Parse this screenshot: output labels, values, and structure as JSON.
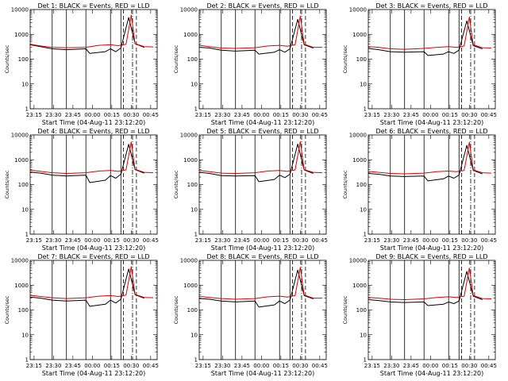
{
  "figure": {
    "x_tick_labels": [
      "23:15",
      "23:30",
      "23:45",
      "00:00",
      "00:15",
      "00:30",
      "00:45"
    ],
    "y_tick_labels": [
      "1",
      "10",
      "100",
      "1000",
      "10000"
    ],
    "ylabel": "Counts/sec",
    "xlabel": "Start Time (04-Aug-11 23:12:20)"
  },
  "chart_data": [
    {
      "type": "line",
      "title": "Det 1: BLACK = Events, RED = LLD",
      "xlabel": "Start Time (04-Aug-11 23:12:20)",
      "ylabel": "Counts/sec",
      "y_scale": "log",
      "ylim": [
        1,
        10000
      ],
      "x_ticks": [
        "23:15",
        "23:30",
        "23:45",
        "00:00",
        "00:15",
        "00:30",
        "00:45"
      ],
      "series": [
        {
          "name": "Events",
          "color": "#000000",
          "x": [
            "23:12",
            "23:20",
            "23:29",
            "23:40",
            "23:55",
            "23:58",
            "00:10",
            "00:14",
            "00:18",
            "00:22",
            "00:28",
            "00:33",
            "00:40"
          ],
          "y": [
            380,
            320,
            260,
            240,
            260,
            170,
            200,
            260,
            200,
            280,
            4800,
            420,
            300
          ]
        },
        {
          "name": "LLD",
          "color": "#dd0000",
          "x": [
            "23:12",
            "23:20",
            "23:29",
            "23:40",
            "23:55",
            "00:05",
            "00:14",
            "00:20",
            "00:26",
            "00:30",
            "00:33",
            "00:40",
            "00:47"
          ],
          "y": [
            400,
            340,
            300,
            290,
            300,
            360,
            380,
            350,
            400,
            6000,
            420,
            320,
            310
          ]
        }
      ]
    },
    {
      "type": "line",
      "title": "Det 2: BLACK = Events, RED = LLD",
      "xlabel": "Start Time (04-Aug-11 23:12:20)",
      "ylabel": "Counts/sec",
      "y_scale": "log",
      "ylim": [
        1,
        10000
      ],
      "x_ticks": [
        "23:15",
        "23:30",
        "23:45",
        "00:00",
        "00:15",
        "00:30",
        "00:45"
      ],
      "series": [
        {
          "name": "Events",
          "color": "#000000",
          "x": [
            "23:12",
            "23:20",
            "23:29",
            "23:40",
            "23:55",
            "23:58",
            "00:10",
            "00:14",
            "00:18",
            "00:22",
            "00:28",
            "00:33",
            "00:40"
          ],
          "y": [
            300,
            280,
            230,
            210,
            230,
            160,
            190,
            240,
            190,
            260,
            4000,
            380,
            280
          ]
        },
        {
          "name": "LLD",
          "color": "#dd0000",
          "x": [
            "23:12",
            "23:20",
            "23:29",
            "23:40",
            "23:55",
            "00:05",
            "00:14",
            "00:20",
            "00:26",
            "00:30",
            "00:33",
            "00:40",
            "00:47"
          ],
          "y": [
            360,
            320,
            280,
            270,
            290,
            340,
            360,
            330,
            380,
            5500,
            400,
            300,
            300
          ]
        }
      ]
    },
    {
      "type": "line",
      "title": "Det 3: BLACK = Events, RED = LLD",
      "xlabel": "Start Time (04-Aug-11 23:12:20)",
      "ylabel": "Counts/sec",
      "y_scale": "log",
      "ylim": [
        1,
        10000
      ],
      "x_ticks": [
        "23:15",
        "23:30",
        "23:45",
        "00:00",
        "00:15",
        "00:30",
        "00:45"
      ],
      "series": [
        {
          "name": "Events",
          "color": "#000000",
          "x": [
            "23:12",
            "23:20",
            "23:29",
            "23:40",
            "23:55",
            "23:58",
            "00:10",
            "00:14",
            "00:18",
            "00:22",
            "00:28",
            "00:33",
            "00:40"
          ],
          "y": [
            270,
            240,
            200,
            190,
            200,
            140,
            160,
            200,
            170,
            230,
            3500,
            350,
            260
          ]
        },
        {
          "name": "LLD",
          "color": "#dd0000",
          "x": [
            "23:12",
            "23:20",
            "23:29",
            "23:40",
            "23:55",
            "00:05",
            "00:14",
            "00:20",
            "00:26",
            "00:30",
            "00:33",
            "00:40",
            "00:47"
          ],
          "y": [
            320,
            300,
            260,
            250,
            270,
            300,
            320,
            300,
            340,
            5000,
            380,
            290,
            280
          ]
        }
      ]
    },
    {
      "type": "line",
      "title": "Det 4: BLACK = Events, RED = LLD",
      "xlabel": "Start Time (04-Aug-11 23:12:20)",
      "ylabel": "Counts/sec",
      "y_scale": "log",
      "ylim": [
        1,
        10000
      ],
      "x_ticks": [
        "23:15",
        "23:30",
        "23:45",
        "00:00",
        "00:15",
        "00:30",
        "00:45"
      ],
      "series": [
        {
          "name": "Events",
          "color": "#000000",
          "x": [
            "23:12",
            "23:20",
            "23:29",
            "23:40",
            "23:55",
            "23:58",
            "00:10",
            "00:14",
            "00:18",
            "00:22",
            "00:28",
            "00:33",
            "00:40"
          ],
          "y": [
            320,
            290,
            240,
            220,
            240,
            120,
            150,
            230,
            180,
            260,
            4200,
            400,
            290
          ]
        },
        {
          "name": "LLD",
          "color": "#dd0000",
          "x": [
            "23:12",
            "23:20",
            "23:29",
            "23:40",
            "23:55",
            "00:05",
            "00:14",
            "00:20",
            "00:26",
            "00:30",
            "00:33",
            "00:40",
            "00:47"
          ],
          "y": [
            380,
            340,
            300,
            280,
            300,
            350,
            370,
            340,
            390,
            5200,
            410,
            310,
            300
          ]
        }
      ]
    },
    {
      "type": "line",
      "title": "Det 5: BLACK = Events, RED = LLD",
      "xlabel": "Start Time (04-Aug-11 23:12:20)",
      "ylabel": "Counts/sec",
      "y_scale": "log",
      "ylim": [
        1,
        10000
      ],
      "x_ticks": [
        "23:15",
        "23:30",
        "23:45",
        "00:00",
        "00:15",
        "00:30",
        "00:45"
      ],
      "series": [
        {
          "name": "Events",
          "color": "#000000",
          "x": [
            "23:12",
            "23:20",
            "23:29",
            "23:40",
            "23:55",
            "23:58",
            "00:10",
            "00:14",
            "00:18",
            "00:22",
            "00:28",
            "00:33",
            "00:40"
          ],
          "y": [
            310,
            280,
            230,
            220,
            230,
            130,
            160,
            240,
            190,
            260,
            4300,
            390,
            280
          ]
        },
        {
          "name": "LLD",
          "color": "#dd0000",
          "x": [
            "23:12",
            "23:20",
            "23:29",
            "23:40",
            "23:55",
            "00:05",
            "00:14",
            "00:20",
            "00:26",
            "00:30",
            "00:33",
            "00:40",
            "00:47"
          ],
          "y": [
            370,
            330,
            290,
            280,
            300,
            350,
            370,
            340,
            390,
            5400,
            400,
            310,
            300
          ]
        }
      ]
    },
    {
      "type": "line",
      "title": "Det 6: BLACK = Events, RED = LLD",
      "xlabel": "Start Time (04-Aug-11 23:12:20)",
      "ylabel": "Counts/sec",
      "y_scale": "log",
      "ylim": [
        1,
        10000
      ],
      "x_ticks": [
        "23:15",
        "23:30",
        "23:45",
        "00:00",
        "00:15",
        "00:30",
        "00:45"
      ],
      "series": [
        {
          "name": "Events",
          "color": "#000000",
          "x": [
            "23:12",
            "23:20",
            "23:29",
            "23:40",
            "23:55",
            "23:58",
            "00:10",
            "00:14",
            "00:18",
            "00:22",
            "00:28",
            "00:33",
            "00:40"
          ],
          "y": [
            280,
            260,
            220,
            210,
            220,
            140,
            170,
            220,
            180,
            240,
            3800,
            370,
            270
          ]
        },
        {
          "name": "LLD",
          "color": "#dd0000",
          "x": [
            "23:12",
            "23:20",
            "23:29",
            "23:40",
            "23:55",
            "00:05",
            "00:14",
            "00:20",
            "00:26",
            "00:30",
            "00:33",
            "00:40",
            "00:47"
          ],
          "y": [
            340,
            310,
            280,
            270,
            290,
            330,
            350,
            330,
            370,
            5100,
            390,
            300,
            290
          ]
        }
      ]
    },
    {
      "type": "line",
      "title": "Det 7: BLACK = Events, RED = LLD",
      "xlabel": "Start Time (04-Aug-11 23:12:20)",
      "ylabel": "Counts/sec",
      "y_scale": "log",
      "ylim": [
        1,
        10000
      ],
      "x_ticks": [
        "23:15",
        "23:30",
        "23:45",
        "00:00",
        "00:15",
        "00:30",
        "00:45"
      ],
      "series": [
        {
          "name": "Events",
          "color": "#000000",
          "x": [
            "23:12",
            "23:20",
            "23:29",
            "23:40",
            "23:55",
            "23:58",
            "00:10",
            "00:14",
            "00:18",
            "00:22",
            "00:28",
            "00:33",
            "00:40"
          ],
          "y": [
            330,
            300,
            250,
            230,
            250,
            140,
            170,
            250,
            190,
            270,
            4500,
            410,
            300
          ]
        },
        {
          "name": "LLD",
          "color": "#dd0000",
          "x": [
            "23:12",
            "23:20",
            "23:29",
            "23:40",
            "23:55",
            "00:05",
            "00:14",
            "00:20",
            "00:26",
            "00:30",
            "00:33",
            "00:40",
            "00:47"
          ],
          "y": [
            390,
            350,
            310,
            290,
            310,
            360,
            380,
            350,
            400,
            5600,
            420,
            320,
            310
          ]
        }
      ]
    },
    {
      "type": "line",
      "title": "Det 8: BLACK = Events, RED = LLD",
      "xlabel": "Start Time (04-Aug-11 23:12:20)",
      "ylabel": "Counts/sec",
      "y_scale": "log",
      "ylim": [
        1,
        10000
      ],
      "x_ticks": [
        "23:15",
        "23:30",
        "23:45",
        "00:00",
        "00:15",
        "00:30",
        "00:45"
      ],
      "series": [
        {
          "name": "Events",
          "color": "#000000",
          "x": [
            "23:12",
            "23:20",
            "23:29",
            "23:40",
            "23:55",
            "23:58",
            "00:10",
            "00:14",
            "00:18",
            "00:22",
            "00:28",
            "00:33",
            "00:40"
          ],
          "y": [
            290,
            270,
            230,
            210,
            230,
            130,
            160,
            230,
            180,
            250,
            4100,
            380,
            280
          ]
        },
        {
          "name": "LLD",
          "color": "#dd0000",
          "x": [
            "23:12",
            "23:20",
            "23:29",
            "23:40",
            "23:55",
            "00:05",
            "00:14",
            "00:20",
            "00:26",
            "00:30",
            "00:33",
            "00:40",
            "00:47"
          ],
          "y": [
            350,
            320,
            290,
            270,
            290,
            340,
            360,
            330,
            380,
            5300,
            400,
            300,
            300
          ]
        }
      ]
    },
    {
      "type": "line",
      "title": "Det 9: BLACK = Events, RED = LLD",
      "xlabel": "Start Time (04-Aug-11 23:12:20)",
      "ylabel": "Counts/sec",
      "y_scale": "log",
      "ylim": [
        1,
        10000
      ],
      "x_ticks": [
        "23:15",
        "23:30",
        "23:45",
        "00:00",
        "00:15",
        "00:30",
        "00:45"
      ],
      "series": [
        {
          "name": "Events",
          "color": "#000000",
          "x": [
            "23:12",
            "23:20",
            "23:29",
            "23:40",
            "23:55",
            "23:58",
            "00:10",
            "00:14",
            "00:18",
            "00:22",
            "00:28",
            "00:33",
            "00:40"
          ],
          "y": [
            260,
            240,
            210,
            200,
            210,
            150,
            170,
            210,
            180,
            230,
            3600,
            360,
            260
          ]
        },
        {
          "name": "LLD",
          "color": "#dd0000",
          "x": [
            "23:12",
            "23:20",
            "23:29",
            "23:40",
            "23:55",
            "00:05",
            "00:14",
            "00:20",
            "00:26",
            "00:30",
            "00:33",
            "00:40",
            "00:47"
          ],
          "y": [
            320,
            300,
            270,
            260,
            280,
            320,
            340,
            320,
            360,
            4900,
            380,
            290,
            280
          ]
        }
      ]
    }
  ]
}
